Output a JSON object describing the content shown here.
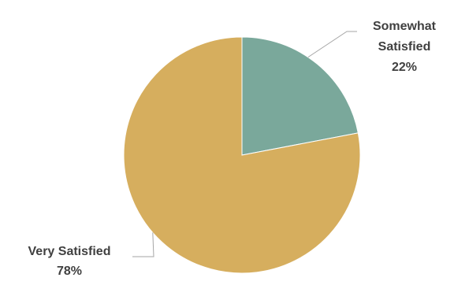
{
  "chart_data": {
    "type": "pie",
    "title": "",
    "slices": [
      {
        "label_lines": [
          "Somewhat",
          "Satisfied"
        ],
        "percent_label": "22%",
        "value": 22,
        "color": "#7aa89b"
      },
      {
        "label_lines": [
          "Very Satisfied"
        ],
        "percent_label": "78%",
        "value": 78,
        "color": "#d6ae5e"
      }
    ],
    "start_angle_deg": 0,
    "direction": "clockwise",
    "legend": "none",
    "label_color": "#404040",
    "leader_line_color": "#a6a6a6"
  }
}
